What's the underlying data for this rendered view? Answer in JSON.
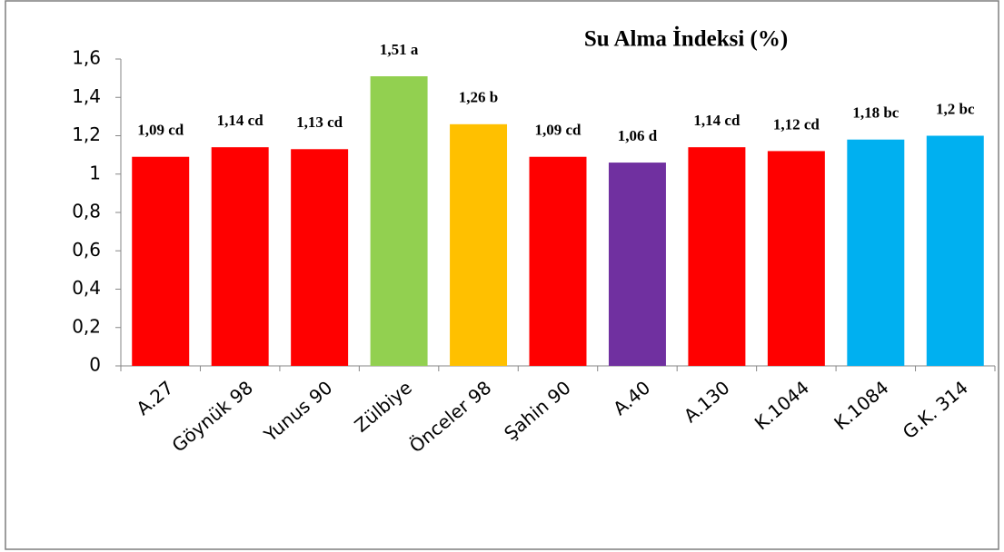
{
  "chart_data": {
    "type": "bar",
    "title": "Su Alma İndeksi (%)",
    "categories": [
      "A.27",
      "Göynük 98",
      "Yunus 90",
      "Zülbiye",
      "Önceler 98",
      "Şahin 90",
      "A.40",
      "A.130",
      "K.1044",
      "K.1084",
      "G.K. 314"
    ],
    "values": [
      1.09,
      1.14,
      1.13,
      1.51,
      1.26,
      1.09,
      1.06,
      1.14,
      1.12,
      1.18,
      1.2
    ],
    "value_labels": [
      "1,09 cd",
      "1,14 cd",
      "1,13 cd",
      "1,51 a",
      "1,26 b",
      "1,09 cd",
      "1,06 d",
      "1,14 cd",
      "1,12 cd",
      "1,18 bc",
      "1,2 bc"
    ],
    "colors": [
      "#ff0000",
      "#ff0000",
      "#ff0000",
      "#92d050",
      "#ffc000",
      "#ff0000",
      "#7030a0",
      "#ff0000",
      "#ff0000",
      "#00b0f0",
      "#00b0f0"
    ],
    "ylim": [
      0,
      1.6
    ],
    "yticks": [
      0,
      {
        "value": 0.2,
        "label": "0,2"
      },
      {
        "value": 0.4,
        "label": "0,4"
      },
      {
        "value": 0.6,
        "label": "0,6"
      },
      {
        "value": 0.8,
        "label": "0,8"
      },
      1,
      {
        "value": 1.2,
        "label": "1,2"
      },
      {
        "value": 1.4,
        "label": "1,4"
      },
      {
        "value": 1.6,
        "label": "1,6"
      }
    ]
  }
}
